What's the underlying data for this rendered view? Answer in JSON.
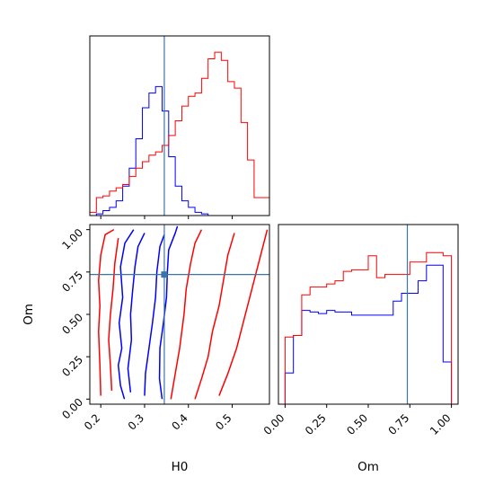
{
  "chart_data": {
    "type": "corner",
    "title": "",
    "colors": {
      "series_a": "#0000ff",
      "series_b": "#ff0000",
      "truth": "#3a75a8"
    },
    "truth": {
      "H0": 0.345,
      "Om": 0.735
    },
    "panels": {
      "hist_H0": {
        "xlabel": "",
        "xlim": [
          0.175,
          0.585
        ],
        "ylim": [
          0,
          1.1
        ],
        "bin_edges": [
          0.175,
          0.19,
          0.205,
          0.22,
          0.235,
          0.25,
          0.265,
          0.28,
          0.295,
          0.31,
          0.325,
          0.34,
          0.355,
          0.37,
          0.385,
          0.4,
          0.415,
          0.43,
          0.445,
          0.46,
          0.475,
          0.49,
          0.505,
          0.52,
          0.535,
          0.55,
          0.565,
          0.585
        ],
        "series": [
          {
            "counts": [
              0,
              0.01,
              0.03,
              0.05,
              0.09,
              0.18,
              0.29,
              0.47,
              0.66,
              0.75,
              0.79,
              0.64,
              0.36,
              0.18,
              0.09,
              0.05,
              0.02,
              0.01,
              0,
              0,
              0,
              0,
              0,
              0,
              0,
              0,
              0
            ]
          },
          {
            "counts": [
              0.02,
              0.11,
              0.12,
              0.15,
              0.17,
              0.19,
              0.24,
              0.29,
              0.33,
              0.37,
              0.39,
              0.43,
              0.49,
              0.58,
              0.67,
              0.73,
              0.75,
              0.84,
              0.96,
              1.0,
              0.95,
              0.82,
              0.78,
              0.57,
              0.34,
              0.11,
              0.11
            ]
          }
        ]
      },
      "hist_Om": {
        "xlabel": "Om",
        "xlim": [
          -0.04,
          1.04
        ],
        "ylim": [
          0,
          1.15
        ],
        "xticks": [
          0.0,
          0.25,
          0.5,
          0.75,
          1.0
        ],
        "xticklabels": [
          "0.00",
          "0.25",
          "0.50",
          "0.75",
          "1.00"
        ],
        "bin_edges": [
          0,
          0.05,
          0.1,
          0.15,
          0.2,
          0.25,
          0.3,
          0.35,
          0.4,
          0.45,
          0.5,
          0.55,
          0.6,
          0.65,
          0.7,
          0.75,
          0.8,
          0.85,
          0.9,
          0.95,
          1.0
        ],
        "series": [
          {
            "counts": [
              0.2,
              0.44,
              0.6,
              0.59,
              0.58,
              0.6,
              0.59,
              0.59,
              0.57,
              0.57,
              0.57,
              0.57,
              0.57,
              0.66,
              0.71,
              0.71,
              0.79,
              0.89,
              0.89,
              0.27
            ]
          },
          {
            "counts": [
              0.43,
              0.44,
              0.7,
              0.75,
              0.75,
              0.77,
              0.79,
              0.85,
              0.86,
              0.86,
              0.95,
              0.81,
              0.83,
              0.83,
              0.83,
              0.91,
              0.91,
              0.97,
              0.97,
              0.95
            ]
          }
        ]
      },
      "joint": {
        "xlabel": "H0",
        "ylabel": "Om",
        "xlim": [
          0.175,
          0.585
        ],
        "ylim": [
          -0.03,
          1.03
        ],
        "xticks": [
          0.2,
          0.3,
          0.4,
          0.5
        ],
        "xticklabels": [
          "0.2",
          "0.3",
          "0.4",
          "0.5"
        ],
        "yticks": [
          0.0,
          0.25,
          0.5,
          0.75,
          1.0
        ],
        "yticklabels": [
          "0.00",
          "0.25",
          "0.50",
          "0.75",
          "1.00"
        ],
        "contours": [
          {
            "series": 0,
            "points": [
              [
                0.254,
                0.0
              ],
              [
                0.245,
                0.08
              ],
              [
                0.24,
                0.2
              ],
              [
                0.248,
                0.3
              ],
              [
                0.242,
                0.45
              ],
              [
                0.25,
                0.6
              ],
              [
                0.245,
                0.78
              ],
              [
                0.255,
                0.92
              ],
              [
                0.275,
                1.0
              ]
            ]
          },
          {
            "series": 0,
            "points": [
              [
                0.34,
                0.0
              ],
              [
                0.334,
                0.12
              ],
              [
                0.335,
                0.3
              ],
              [
                0.343,
                0.45
              ],
              [
                0.35,
                0.6
              ],
              [
                0.352,
                0.75
              ],
              [
                0.355,
                0.88
              ],
              [
                0.37,
                0.98
              ],
              [
                0.375,
                1.02
              ]
            ]
          },
          {
            "series": 0,
            "points": [
              [
                0.268,
                0.04
              ],
              [
                0.262,
                0.18
              ],
              [
                0.27,
                0.35
              ],
              [
                0.268,
                0.5
              ],
              [
                0.272,
                0.62
              ],
              [
                0.278,
                0.78
              ],
              [
                0.285,
                0.9
              ],
              [
                0.3,
                0.98
              ]
            ]
          },
          {
            "series": 0,
            "points": [
              [
                0.3,
                0.02
              ],
              [
                0.302,
                0.15
              ],
              [
                0.31,
                0.3
              ],
              [
                0.318,
                0.45
              ],
              [
                0.325,
                0.6
              ],
              [
                0.328,
                0.75
              ],
              [
                0.335,
                0.9
              ],
              [
                0.345,
                0.97
              ]
            ]
          },
          {
            "series": 1,
            "points": [
              [
                0.2,
                0.02
              ],
              [
                0.198,
                0.2
              ],
              [
                0.195,
                0.4
              ],
              [
                0.198,
                0.55
              ],
              [
                0.195,
                0.7
              ],
              [
                0.2,
                0.85
              ],
              [
                0.21,
                0.97
              ],
              [
                0.23,
                1.0
              ]
            ]
          },
          {
            "series": 1,
            "points": [
              [
                0.36,
                0.0
              ],
              [
                0.37,
                0.15
              ],
              [
                0.38,
                0.3
              ],
              [
                0.39,
                0.5
              ],
              [
                0.395,
                0.65
              ],
              [
                0.405,
                0.8
              ],
              [
                0.415,
                0.92
              ],
              [
                0.43,
                1.0
              ]
            ]
          },
          {
            "series": 1,
            "points": [
              [
                0.415,
                0.0
              ],
              [
                0.43,
                0.12
              ],
              [
                0.445,
                0.25
              ],
              [
                0.455,
                0.4
              ],
              [
                0.47,
                0.55
              ],
              [
                0.48,
                0.7
              ],
              [
                0.49,
                0.85
              ],
              [
                0.505,
                0.98
              ]
            ]
          },
          {
            "series": 1,
            "points": [
              [
                0.47,
                0.02
              ],
              [
                0.49,
                0.15
              ],
              [
                0.51,
                0.3
              ],
              [
                0.525,
                0.45
              ],
              [
                0.54,
                0.6
              ],
              [
                0.555,
                0.75
              ],
              [
                0.57,
                0.9
              ],
              [
                0.58,
                1.0
              ]
            ]
          },
          {
            "series": 1,
            "points": [
              [
                0.225,
                0.05
              ],
              [
                0.222,
                0.2
              ],
              [
                0.218,
                0.35
              ],
              [
                0.222,
                0.5
              ],
              [
                0.228,
                0.65
              ],
              [
                0.232,
                0.8
              ],
              [
                0.24,
                0.95
              ]
            ]
          }
        ]
      }
    }
  }
}
